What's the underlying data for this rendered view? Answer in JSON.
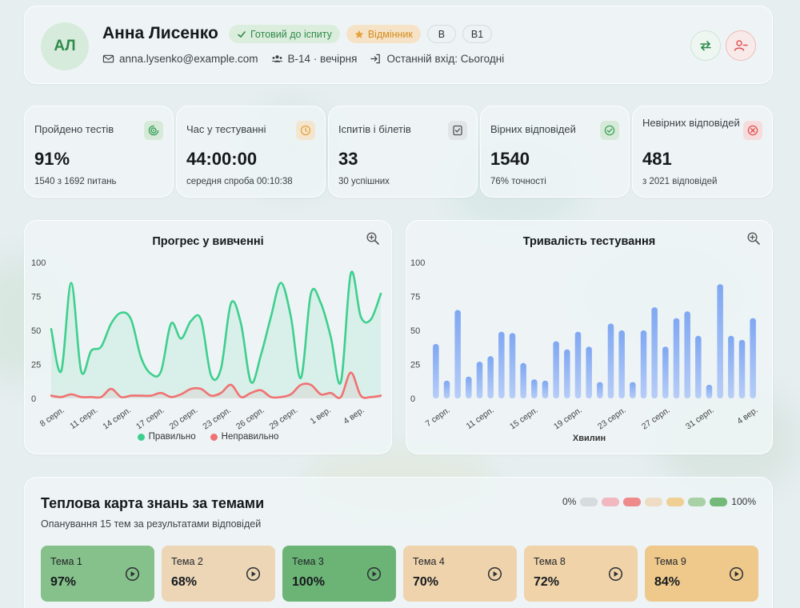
{
  "profile": {
    "initials": "АЛ",
    "name": "Анна Лисенко",
    "badges": [
      "Готовий до іспиту",
      "Відмінник",
      "B",
      "B1"
    ],
    "email": "anna.lysenko@example.com",
    "group": "В-14 · вечірня",
    "last_login": "Останній вхід: Сьогодні"
  },
  "stats": [
    {
      "label": "Пройдено тестів",
      "value": "91%",
      "sub": "1540 з 1692 питань",
      "icon": "target-icon",
      "color": "#3aa35a"
    },
    {
      "label": "Час у тестуванні",
      "value": "44:00:00",
      "sub": "середня спроба 00:10:38",
      "icon": "clock-icon",
      "color": "#e6a23c"
    },
    {
      "label": "Іспитів і білетів",
      "value": "33",
      "sub": "30 успішних",
      "icon": "checklist-icon",
      "color": "#6b7280"
    },
    {
      "label": "Вірних відповідей",
      "value": "1540",
      "sub": "76% точності",
      "icon": "check-circle-icon",
      "color": "#3aa35a"
    },
    {
      "label": "Невірних відповідей",
      "value": "481",
      "sub": "з 2021 відповідей",
      "icon": "x-circle-icon",
      "color": "#e05252"
    }
  ],
  "chart_data": [
    {
      "type": "line",
      "title": "Прогрес у вивченні",
      "ylim": [
        0,
        100
      ],
      "yticks": [
        0,
        25,
        50,
        75,
        100
      ],
      "x_tick_labels": [
        "8 серп.",
        "11 серп.",
        "14 серп.",
        "17 серп.",
        "20 серп.",
        "23 серп.",
        "26 серп.",
        "29 серп.",
        "1 вер.",
        "4 вер."
      ],
      "series": [
        {
          "name": "Правильно",
          "color": "#3ecf8e",
          "values": [
            51,
            20,
            85,
            20,
            35,
            38,
            55,
            63,
            58,
            30,
            18,
            20,
            55,
            44,
            57,
            58,
            17,
            22,
            70,
            55,
            12,
            32,
            60,
            85,
            60,
            15,
            77,
            70,
            45,
            12,
            92,
            60,
            58,
            77
          ]
        },
        {
          "name": "Неправильно",
          "color": "#f07272",
          "values": [
            2,
            1,
            3,
            1,
            1,
            1,
            7,
            1,
            2,
            2,
            2,
            4,
            1,
            3,
            7,
            7,
            2,
            4,
            10,
            1,
            4,
            6,
            1,
            1,
            3,
            10,
            10,
            3,
            4,
            1,
            19,
            2,
            1,
            2
          ]
        }
      ]
    },
    {
      "type": "bar",
      "title": "Тривалість тестування",
      "xlabel": "Хвилин",
      "ylim": [
        0,
        100
      ],
      "yticks": [
        0,
        25,
        50,
        75,
        100
      ],
      "x_tick_labels": [
        "7 серп.",
        "11 серп.",
        "15 серп.",
        "19 серп.",
        "23 серп.",
        "27 серп.",
        "31 серп.",
        "4 вер."
      ],
      "values": [
        40,
        13,
        65,
        16,
        27,
        31,
        49,
        48,
        26,
        14,
        13,
        42,
        36,
        49,
        38,
        12,
        55,
        50,
        12,
        50,
        67,
        38,
        59,
        64,
        46,
        10,
        84,
        46,
        43,
        59
      ]
    }
  ],
  "heatmap": {
    "title": "Теплова карта знань за темами",
    "subtitle": "Опанування 15 тем за результатами відповідей",
    "scale_min": "0%",
    "scale_max": "100%",
    "scale_colors": [
      "#d6dcdd",
      "#f1b8bf",
      "#ee8a8a",
      "#eedcc4",
      "#efcf94",
      "#a9d0a7",
      "#72b97a"
    ],
    "tiles": [
      {
        "name": "Тема 1",
        "percent": "97%",
        "color": "#86c08a"
      },
      {
        "name": "Тема 2",
        "percent": "68%",
        "color": "#ecd6b6"
      },
      {
        "name": "Тема 3",
        "percent": "100%",
        "color": "#6cb475"
      },
      {
        "name": "Тема 4",
        "percent": "70%",
        "color": "#efd3ac"
      },
      {
        "name": "Тема 8",
        "percent": "72%",
        "color": "#f0d3a8"
      },
      {
        "name": "Тема 9",
        "percent": "84%",
        "color": "#efc98c"
      }
    ]
  }
}
